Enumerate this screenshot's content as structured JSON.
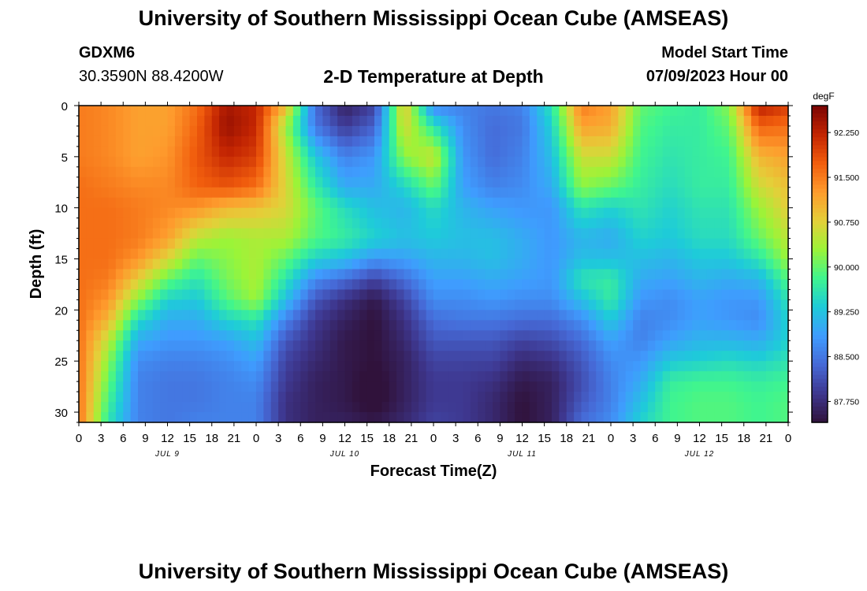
{
  "header": {
    "title": "University of Southern Mississippi Ocean Cube (AMSEAS)",
    "station_id": "GDXM6",
    "station_coords": "30.3590N  88.4200W",
    "chart_title": "2-D Temperature at Depth",
    "model_start_label": "Model Start Time",
    "model_start_value": "07/09/2023 Hour 00"
  },
  "footer": {
    "title_repeat": "University of Southern Mississippi Ocean Cube (AMSEAS)"
  },
  "chart_data": {
    "type": "heatmap",
    "title": "2-D Temperature at Depth",
    "xlabel": "Forecast Time(Z)",
    "ylabel": "Depth (ft)",
    "x_tick_labels": [
      "0",
      "3",
      "6",
      "9",
      "12",
      "15",
      "18",
      "21",
      "0",
      "3",
      "6",
      "9",
      "12",
      "15",
      "18",
      "21",
      "0",
      "3",
      "6",
      "9",
      "12",
      "15",
      "18",
      "21",
      "0",
      "3",
      "6",
      "9",
      "12",
      "15",
      "18",
      "21",
      "0"
    ],
    "x_range_hours": [
      0,
      96
    ],
    "day_labels": [
      {
        "label": "JUL 9",
        "hour": 12
      },
      {
        "label": "JUL 10",
        "hour": 36
      },
      {
        "label": "JUL 11",
        "hour": 60
      },
      {
        "label": "JUL 12",
        "hour": 84
      }
    ],
    "y_ticks": [
      0,
      5,
      10,
      15,
      20,
      25,
      30
    ],
    "y_range_ft": [
      0,
      31
    ],
    "y_inverted": true,
    "colorbar": {
      "unit": "degF",
      "tick_values": [
        92.25,
        91.5,
        90.75,
        90.0,
        89.25,
        88.5,
        87.75
      ],
      "tick_labels": [
        "92.250",
        "91.500",
        "90.750",
        "90.000",
        "89.250",
        "88.500",
        "87.750"
      ],
      "range": [
        87.4,
        92.7
      ],
      "colors": [
        "#30123b",
        "#3e378f",
        "#4669d6",
        "#3f9cfe",
        "#1ecbd9",
        "#3ff58f",
        "#9bf438",
        "#e4cf39",
        "#fe9b2d",
        "#f15d0d",
        "#c22402",
        "#7a0403"
      ]
    },
    "description_keypoints": {
      "depths_ft": [
        0,
        2,
        5,
        8,
        10,
        13,
        15,
        17,
        19,
        21,
        23,
        25,
        27,
        29,
        31
      ],
      "series": [
        {
          "hour": 0,
          "values": [
            91.5,
            91.5,
            91.5,
            91.6,
            91.6,
            91.6,
            91.6,
            91.6,
            91.6,
            91.6,
            91.6,
            91.6,
            91.6,
            91.6,
            91.6
          ]
        },
        {
          "hour": 4,
          "values": [
            91.4,
            91.4,
            91.4,
            91.5,
            91.6,
            91.6,
            91.6,
            91.5,
            91.3,
            91.0,
            90.5,
            90.2,
            90.0,
            89.8,
            89.6
          ]
        },
        {
          "hour": 8,
          "values": [
            91.2,
            91.2,
            91.2,
            91.4,
            91.5,
            91.5,
            91.3,
            90.8,
            90.2,
            89.5,
            89.0,
            88.7,
            88.6,
            88.6,
            88.6
          ]
        },
        {
          "hour": 12,
          "values": [
            91.2,
            91.2,
            91.3,
            91.4,
            91.4,
            91.2,
            90.7,
            90.0,
            89.4,
            89.0,
            88.8,
            88.6,
            88.5,
            88.5,
            88.5
          ]
        },
        {
          "hour": 16,
          "values": [
            91.6,
            91.7,
            91.8,
            91.7,
            91.3,
            90.5,
            90.0,
            89.6,
            89.3,
            89.0,
            88.8,
            88.6,
            88.5,
            88.5,
            88.6
          ]
        },
        {
          "hour": 20,
          "values": [
            92.4,
            92.5,
            92.2,
            91.8,
            91.0,
            90.3,
            90.2,
            90.1,
            89.9,
            89.4,
            88.9,
            88.7,
            88.6,
            88.6,
            88.6
          ]
        },
        {
          "hour": 24,
          "values": [
            92.2,
            92.2,
            92.0,
            91.6,
            90.9,
            90.4,
            90.4,
            90.4,
            90.3,
            89.6,
            89.2,
            88.9,
            88.7,
            88.6,
            88.6
          ]
        },
        {
          "hour": 28,
          "values": [
            91.0,
            90.3,
            90.6,
            90.7,
            90.7,
            90.4,
            90.0,
            89.6,
            89.2,
            88.6,
            88.2,
            88.0,
            87.9,
            87.8,
            87.8
          ]
        },
        {
          "hour": 32,
          "values": [
            88.4,
            88.5,
            89.3,
            89.7,
            90.0,
            89.9,
            89.4,
            88.7,
            88.2,
            87.9,
            87.8,
            87.7,
            87.6,
            87.6,
            87.6
          ]
        },
        {
          "hour": 36,
          "values": [
            87.6,
            87.9,
            88.6,
            89.0,
            89.5,
            89.7,
            89.2,
            88.4,
            87.8,
            87.6,
            87.5,
            87.5,
            87.5,
            87.5,
            87.6
          ]
        },
        {
          "hour": 40,
          "values": [
            88.0,
            88.3,
            88.8,
            89.0,
            89.2,
            89.4,
            88.8,
            88.0,
            87.5,
            87.4,
            87.4,
            87.4,
            87.3,
            87.3,
            87.5
          ]
        },
        {
          "hour": 44,
          "values": [
            90.9,
            90.7,
            90.2,
            89.4,
            89.1,
            89.2,
            88.9,
            88.4,
            88.0,
            87.8,
            87.7,
            87.6,
            87.6,
            87.6,
            87.7
          ]
        },
        {
          "hour": 48,
          "values": [
            88.6,
            89.6,
            90.6,
            90.0,
            89.5,
            89.3,
            89.1,
            88.9,
            88.7,
            88.4,
            88.2,
            88.0,
            87.9,
            87.9,
            88.0
          ]
        },
        {
          "hour": 52,
          "values": [
            88.6,
            88.7,
            88.8,
            88.9,
            89.1,
            89.2,
            89.1,
            88.9,
            88.7,
            88.5,
            88.2,
            88.0,
            87.9,
            87.9,
            87.9
          ]
        },
        {
          "hour": 56,
          "values": [
            88.5,
            88.4,
            88.4,
            88.6,
            88.9,
            89.2,
            89.2,
            89.0,
            88.8,
            88.5,
            88.2,
            88.0,
            87.8,
            87.7,
            87.7
          ]
        },
        {
          "hour": 60,
          "values": [
            88.6,
            88.5,
            88.6,
            88.7,
            88.8,
            89.0,
            89.0,
            88.9,
            88.7,
            88.4,
            88.0,
            87.7,
            87.5,
            87.4,
            87.4
          ]
        },
        {
          "hour": 64,
          "values": [
            89.6,
            89.4,
            89.2,
            89.0,
            88.8,
            88.8,
            88.8,
            88.8,
            88.7,
            88.4,
            88.1,
            87.8,
            87.6,
            87.6,
            87.6
          ]
        },
        {
          "hour": 68,
          "values": [
            91.5,
            91.2,
            90.6,
            90.2,
            89.6,
            89.1,
            89.2,
            89.6,
            89.2,
            88.7,
            88.4,
            88.2,
            88.1,
            88.2,
            88.4
          ]
        },
        {
          "hour": 72,
          "values": [
            91.2,
            91.1,
            90.6,
            90.0,
            89.4,
            89.0,
            89.2,
            89.7,
            89.7,
            89.3,
            88.9,
            88.7,
            88.6,
            88.6,
            88.7
          ]
        },
        {
          "hour": 76,
          "values": [
            90.0,
            89.9,
            89.8,
            89.7,
            89.6,
            89.4,
            89.2,
            89.0,
            88.8,
            88.6,
            88.6,
            88.8,
            89.0,
            89.2,
            89.4
          ]
        },
        {
          "hour": 80,
          "values": [
            89.8,
            89.7,
            89.6,
            89.5,
            89.4,
            89.3,
            89.1,
            88.9,
            88.7,
            88.7,
            88.9,
            89.3,
            89.7,
            89.8,
            89.8
          ]
        },
        {
          "hour": 84,
          "values": [
            89.7,
            89.7,
            89.7,
            89.7,
            89.6,
            89.5,
            89.3,
            89.1,
            88.9,
            88.9,
            89.1,
            89.4,
            89.8,
            89.9,
            89.9
          ]
        },
        {
          "hour": 88,
          "values": [
            90.2,
            90.0,
            89.8,
            89.7,
            89.6,
            89.5,
            89.3,
            89.0,
            88.8,
            88.8,
            89.1,
            89.5,
            89.8,
            89.9,
            89.9
          ]
        },
        {
          "hour": 92,
          "values": [
            92.3,
            91.7,
            91.0,
            90.6,
            90.3,
            90.0,
            89.6,
            89.1,
            88.8,
            88.7,
            89.0,
            89.4,
            89.7,
            89.8,
            89.8
          ]
        },
        {
          "hour": 96,
          "values": [
            92.0,
            91.6,
            91.2,
            90.9,
            90.8,
            90.5,
            90.3,
            89.9,
            89.6,
            89.4,
            89.4,
            89.6,
            89.8,
            89.9,
            89.9
          ]
        }
      ]
    },
    "grid": false,
    "legend": "colorbar-right"
  }
}
